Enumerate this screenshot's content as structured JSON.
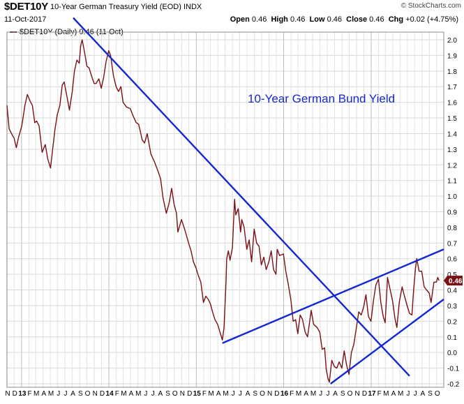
{
  "header": {
    "symbol": "$DET10Y",
    "description": "10-Year German Treasury Yield (EOD) INDX",
    "date": "11-Oct-2017",
    "brand": "© StockCharts.com",
    "open_label": "Open",
    "open": "0.46",
    "high_label": "High",
    "high": "0.46",
    "low_label": "Low",
    "low": "0.46",
    "close_label": "Close",
    "close": "0.46",
    "chg_label": "Chg",
    "chg": "+0.02 (+4.75%)"
  },
  "legend": {
    "text": "$DET10Y (Daily) 0.46 (11 Oct)"
  },
  "colors": {
    "price": "#7a0f14",
    "trend": "#1428d0",
    "annotation": "#1428d0",
    "last_badge": "#7a0f14"
  },
  "chart_data": {
    "type": "line",
    "title": "10-Year German Bund Yield",
    "xlabel": "",
    "ylabel": "",
    "ylim": [
      -0.2,
      2.0
    ],
    "ylim_note": "",
    "yticks": [
      "-0.2",
      "-0.1",
      "0.0",
      "0.1",
      "0.2",
      "0.3",
      "0.4",
      "0.5",
      "0.6",
      "0.7",
      "0.8",
      "0.9",
      "1.0",
      "1.1",
      "1.2",
      "1.3",
      "1.4",
      "1.5",
      "1.6",
      "1.7",
      "1.8",
      "1.9",
      "2.0"
    ],
    "grid": true,
    "last_value_label": "0.46",
    "x_start": "2012-11-01",
    "x_end": "2017-10-31",
    "xticks": [
      {
        "date": "2012-11-01",
        "label": "N"
      },
      {
        "date": "2012-12-01",
        "label": "D"
      },
      {
        "date": "2013-01-01",
        "label": "13"
      },
      {
        "date": "2013-02-01",
        "label": "F"
      },
      {
        "date": "2013-03-01",
        "label": "M"
      },
      {
        "date": "2013-04-01",
        "label": "A"
      },
      {
        "date": "2013-05-01",
        "label": "M"
      },
      {
        "date": "2013-06-01",
        "label": "J"
      },
      {
        "date": "2013-07-01",
        "label": "J"
      },
      {
        "date": "2013-08-01",
        "label": "A"
      },
      {
        "date": "2013-09-01",
        "label": "S"
      },
      {
        "date": "2013-10-01",
        "label": "O"
      },
      {
        "date": "2013-11-01",
        "label": "N"
      },
      {
        "date": "2013-12-01",
        "label": "D"
      },
      {
        "date": "2014-01-01",
        "label": "14"
      },
      {
        "date": "2014-02-01",
        "label": "F"
      },
      {
        "date": "2014-03-01",
        "label": "M"
      },
      {
        "date": "2014-04-01",
        "label": "A"
      },
      {
        "date": "2014-05-01",
        "label": "M"
      },
      {
        "date": "2014-06-01",
        "label": "J"
      },
      {
        "date": "2014-07-01",
        "label": "J"
      },
      {
        "date": "2014-08-01",
        "label": "A"
      },
      {
        "date": "2014-09-01",
        "label": "S"
      },
      {
        "date": "2014-10-01",
        "label": "O"
      },
      {
        "date": "2014-11-01",
        "label": "N"
      },
      {
        "date": "2014-12-01",
        "label": "D"
      },
      {
        "date": "2015-01-01",
        "label": "15"
      },
      {
        "date": "2015-02-01",
        "label": "F"
      },
      {
        "date": "2015-03-01",
        "label": "M"
      },
      {
        "date": "2015-04-01",
        "label": "A"
      },
      {
        "date": "2015-05-01",
        "label": "M"
      },
      {
        "date": "2015-06-01",
        "label": "J"
      },
      {
        "date": "2015-07-01",
        "label": "J"
      },
      {
        "date": "2015-08-01",
        "label": "A"
      },
      {
        "date": "2015-09-01",
        "label": "S"
      },
      {
        "date": "2015-10-01",
        "label": "O"
      },
      {
        "date": "2015-11-01",
        "label": "N"
      },
      {
        "date": "2015-12-01",
        "label": "D"
      },
      {
        "date": "2016-01-01",
        "label": "16"
      },
      {
        "date": "2016-02-01",
        "label": "F"
      },
      {
        "date": "2016-03-01",
        "label": "M"
      },
      {
        "date": "2016-04-01",
        "label": "A"
      },
      {
        "date": "2016-05-01",
        "label": "M"
      },
      {
        "date": "2016-06-01",
        "label": "J"
      },
      {
        "date": "2016-07-01",
        "label": "J"
      },
      {
        "date": "2016-08-01",
        "label": "A"
      },
      {
        "date": "2016-09-01",
        "label": "S"
      },
      {
        "date": "2016-10-01",
        "label": "O"
      },
      {
        "date": "2016-11-01",
        "label": "N"
      },
      {
        "date": "2016-12-01",
        "label": "D"
      },
      {
        "date": "2017-01-01",
        "label": "17"
      },
      {
        "date": "2017-02-01",
        "label": "F"
      },
      {
        "date": "2017-03-01",
        "label": "M"
      },
      {
        "date": "2017-04-01",
        "label": "A"
      },
      {
        "date": "2017-05-01",
        "label": "M"
      },
      {
        "date": "2017-06-01",
        "label": "J"
      },
      {
        "date": "2017-07-01",
        "label": "J"
      },
      {
        "date": "2017-08-01",
        "label": "A"
      },
      {
        "date": "2017-09-01",
        "label": "S"
      },
      {
        "date": "2017-10-01",
        "label": "O"
      }
    ],
    "series": [
      {
        "name": "$DET10Y (Daily)",
        "points": [
          [
            "2012-11-01",
            1.58
          ],
          [
            "2012-11-10",
            1.43
          ],
          [
            "2012-11-20",
            1.4
          ],
          [
            "2012-12-01",
            1.37
          ],
          [
            "2012-12-10",
            1.31
          ],
          [
            "2012-12-20",
            1.38
          ],
          [
            "2013-01-02",
            1.45
          ],
          [
            "2013-01-15",
            1.58
          ],
          [
            "2013-01-25",
            1.65
          ],
          [
            "2013-02-05",
            1.61
          ],
          [
            "2013-02-15",
            1.58
          ],
          [
            "2013-02-25",
            1.47
          ],
          [
            "2013-03-05",
            1.48
          ],
          [
            "2013-03-15",
            1.45
          ],
          [
            "2013-03-28",
            1.28
          ],
          [
            "2013-04-10",
            1.33
          ],
          [
            "2013-04-20",
            1.24
          ],
          [
            "2013-05-02",
            1.18
          ],
          [
            "2013-05-10",
            1.29
          ],
          [
            "2013-05-20",
            1.42
          ],
          [
            "2013-05-30",
            1.52
          ],
          [
            "2013-06-10",
            1.58
          ],
          [
            "2013-06-20",
            1.71
          ],
          [
            "2013-06-28",
            1.73
          ],
          [
            "2013-07-08",
            1.65
          ],
          [
            "2013-07-20",
            1.55
          ],
          [
            "2013-08-01",
            1.67
          ],
          [
            "2013-08-10",
            1.8
          ],
          [
            "2013-08-20",
            1.87
          ],
          [
            "2013-08-30",
            1.85
          ],
          [
            "2013-09-05",
            1.96
          ],
          [
            "2013-09-11",
            2.0
          ],
          [
            "2013-09-20",
            1.93
          ],
          [
            "2013-10-01",
            1.83
          ],
          [
            "2013-10-10",
            1.82
          ],
          [
            "2013-10-20",
            1.77
          ],
          [
            "2013-10-31",
            1.72
          ],
          [
            "2013-11-08",
            1.72
          ],
          [
            "2013-11-20",
            1.75
          ],
          [
            "2013-11-30",
            1.69
          ],
          [
            "2013-12-10",
            1.76
          ],
          [
            "2013-12-20",
            1.86
          ],
          [
            "2013-12-31",
            1.93
          ],
          [
            "2014-01-08",
            1.9
          ],
          [
            "2014-01-20",
            1.77
          ],
          [
            "2014-01-31",
            1.7
          ],
          [
            "2014-02-10",
            1.67
          ],
          [
            "2014-02-20",
            1.7
          ],
          [
            "2014-03-01",
            1.6
          ],
          [
            "2014-03-15",
            1.57
          ],
          [
            "2014-03-31",
            1.56
          ],
          [
            "2014-04-10",
            1.52
          ],
          [
            "2014-04-25",
            1.47
          ],
          [
            "2014-05-05",
            1.46
          ],
          [
            "2014-05-20",
            1.36
          ],
          [
            "2014-05-30",
            1.34
          ],
          [
            "2014-06-10",
            1.4
          ],
          [
            "2014-06-25",
            1.27
          ],
          [
            "2014-07-10",
            1.22
          ],
          [
            "2014-07-25",
            1.16
          ],
          [
            "2014-08-05",
            1.11
          ],
          [
            "2014-08-15",
            0.99
          ],
          [
            "2014-08-29",
            0.89
          ],
          [
            "2014-09-10",
            0.96
          ],
          [
            "2014-09-20",
            1.05
          ],
          [
            "2014-09-30",
            0.95
          ],
          [
            "2014-10-10",
            0.89
          ],
          [
            "2014-10-16",
            0.77
          ],
          [
            "2014-10-31",
            0.85
          ],
          [
            "2014-11-15",
            0.78
          ],
          [
            "2014-11-30",
            0.7
          ],
          [
            "2014-12-10",
            0.65
          ],
          [
            "2014-12-20",
            0.58
          ],
          [
            "2014-12-31",
            0.54
          ],
          [
            "2015-01-10",
            0.49
          ],
          [
            "2015-01-20",
            0.45
          ],
          [
            "2015-01-31",
            0.32
          ],
          [
            "2015-02-10",
            0.36
          ],
          [
            "2015-02-20",
            0.34
          ],
          [
            "2015-03-01",
            0.31
          ],
          [
            "2015-03-10",
            0.26
          ],
          [
            "2015-03-20",
            0.21
          ],
          [
            "2015-03-31",
            0.18
          ],
          [
            "2015-04-10",
            0.13
          ],
          [
            "2015-04-20",
            0.08
          ],
          [
            "2015-04-27",
            0.16
          ],
          [
            "2015-05-05",
            0.45
          ],
          [
            "2015-05-08",
            0.6
          ],
          [
            "2015-05-15",
            0.65
          ],
          [
            "2015-05-22",
            0.59
          ],
          [
            "2015-06-01",
            0.67
          ],
          [
            "2015-06-10",
            0.98
          ],
          [
            "2015-06-15",
            0.88
          ],
          [
            "2015-06-25",
            0.92
          ],
          [
            "2015-07-05",
            0.77
          ],
          [
            "2015-07-10",
            0.85
          ],
          [
            "2015-07-20",
            0.8
          ],
          [
            "2015-07-31",
            0.66
          ],
          [
            "2015-08-10",
            0.72
          ],
          [
            "2015-08-20",
            0.58
          ],
          [
            "2015-08-31",
            0.79
          ],
          [
            "2015-09-10",
            0.7
          ],
          [
            "2015-09-20",
            0.68
          ],
          [
            "2015-09-30",
            0.56
          ],
          [
            "2015-10-10",
            0.61
          ],
          [
            "2015-10-20",
            0.53
          ],
          [
            "2015-10-31",
            0.58
          ],
          [
            "2015-11-10",
            0.65
          ],
          [
            "2015-11-20",
            0.53
          ],
          [
            "2015-11-30",
            0.5
          ],
          [
            "2015-12-05",
            0.66
          ],
          [
            "2015-12-15",
            0.62
          ],
          [
            "2015-12-31",
            0.63
          ],
          [
            "2016-01-10",
            0.52
          ],
          [
            "2016-01-20",
            0.44
          ],
          [
            "2016-01-31",
            0.34
          ],
          [
            "2016-02-10",
            0.2
          ],
          [
            "2016-02-20",
            0.21
          ],
          [
            "2016-02-29",
            0.12
          ],
          [
            "2016-03-10",
            0.24
          ],
          [
            "2016-03-20",
            0.21
          ],
          [
            "2016-03-31",
            0.13
          ],
          [
            "2016-04-10",
            0.1
          ],
          [
            "2016-04-25",
            0.27
          ],
          [
            "2016-05-05",
            0.18
          ],
          [
            "2016-05-20",
            0.16
          ],
          [
            "2016-05-31",
            0.13
          ],
          [
            "2016-06-10",
            0.02
          ],
          [
            "2016-06-20",
            0.03
          ],
          [
            "2016-06-27",
            -0.11
          ],
          [
            "2016-07-05",
            -0.17
          ],
          [
            "2016-07-10",
            -0.19
          ],
          [
            "2016-07-20",
            -0.05
          ],
          [
            "2016-07-31",
            -0.09
          ],
          [
            "2016-08-10",
            -0.1
          ],
          [
            "2016-08-20",
            -0.06
          ],
          [
            "2016-08-31",
            -0.1
          ],
          [
            "2016-09-10",
            0.01
          ],
          [
            "2016-09-20",
            -0.08
          ],
          [
            "2016-09-30",
            -0.14
          ],
          [
            "2016-10-10",
            0.0
          ],
          [
            "2016-10-20",
            0.05
          ],
          [
            "2016-10-31",
            0.16
          ],
          [
            "2016-11-10",
            0.26
          ],
          [
            "2016-11-20",
            0.24
          ],
          [
            "2016-11-30",
            0.29
          ],
          [
            "2016-12-10",
            0.37
          ],
          [
            "2016-12-20",
            0.23
          ],
          [
            "2016-12-31",
            0.2
          ],
          [
            "2017-01-10",
            0.33
          ],
          [
            "2017-01-20",
            0.43
          ],
          [
            "2017-01-31",
            0.47
          ],
          [
            "2017-02-10",
            0.32
          ],
          [
            "2017-02-20",
            0.23
          ],
          [
            "2017-02-28",
            0.19
          ],
          [
            "2017-03-10",
            0.48
          ],
          [
            "2017-03-20",
            0.41
          ],
          [
            "2017-03-31",
            0.33
          ],
          [
            "2017-04-10",
            0.22
          ],
          [
            "2017-04-18",
            0.16
          ],
          [
            "2017-04-28",
            0.32
          ],
          [
            "2017-05-10",
            0.42
          ],
          [
            "2017-05-20",
            0.36
          ],
          [
            "2017-05-31",
            0.3
          ],
          [
            "2017-06-10",
            0.25
          ],
          [
            "2017-06-20",
            0.24
          ],
          [
            "2017-06-27",
            0.4
          ],
          [
            "2017-07-05",
            0.54
          ],
          [
            "2017-07-10",
            0.6
          ],
          [
            "2017-07-20",
            0.52
          ],
          [
            "2017-07-31",
            0.52
          ],
          [
            "2017-08-10",
            0.42
          ],
          [
            "2017-08-20",
            0.4
          ],
          [
            "2017-08-31",
            0.38
          ],
          [
            "2017-09-08",
            0.32
          ],
          [
            "2017-09-20",
            0.45
          ],
          [
            "2017-09-30",
            0.45
          ],
          [
            "2017-10-06",
            0.48
          ],
          [
            "2017-10-11",
            0.46
          ]
        ]
      }
    ],
    "trendlines": [
      {
        "from": [
          "2013-08-05",
          2.14
        ],
        "to": [
          "2017-06-10",
          -0.15
        ]
      },
      {
        "from": [
          "2015-04-20",
          0.06
        ],
        "to": [
          "2017-10-31",
          0.66
        ]
      },
      {
        "from": [
          "2016-07-15",
          -0.2
        ],
        "to": [
          "2017-10-31",
          0.34
        ]
      }
    ]
  }
}
